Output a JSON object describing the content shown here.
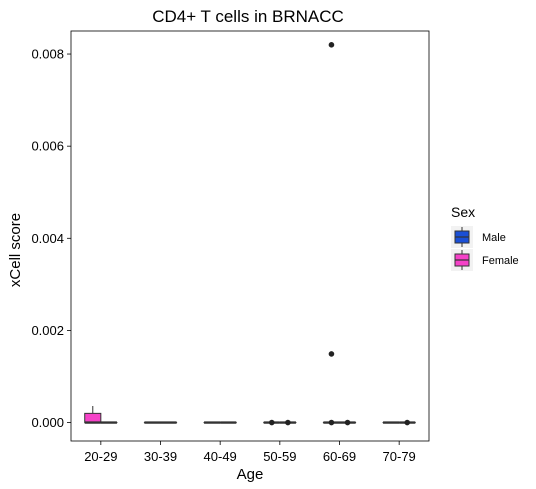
{
  "chart_data": {
    "type": "box",
    "title": "CD4+ T cells in BRNACC",
    "xlabel": "Age",
    "ylabel": "xCell score",
    "categories": [
      "20-29",
      "30-39",
      "40-49",
      "50-59",
      "60-69",
      "70-79"
    ],
    "ylim": [
      -0.0004,
      0.0085
    ],
    "yticks": [
      0.0,
      0.002,
      0.004,
      0.006,
      0.008
    ],
    "ytick_labels": [
      "0.000",
      "0.002",
      "0.004",
      "0.006",
      "0.008"
    ],
    "legend": {
      "title": "Sex",
      "position": "right"
    },
    "series": [
      {
        "name": "Female",
        "color": "#f542c8",
        "boxes": [
          {
            "category": "20-29",
            "min": 0.0,
            "q1": 0.0,
            "median": 0.0,
            "q3": 0.0002,
            "max": 0.00036,
            "outliers": []
          },
          {
            "category": "30-39",
            "min": 0.0,
            "q1": 0.0,
            "median": 0.0,
            "q3": 0.0,
            "max": 0.0,
            "outliers": []
          },
          {
            "category": "40-49",
            "min": 0.0,
            "q1": 0.0,
            "median": 0.0,
            "q3": 0.0,
            "max": 0.0,
            "outliers": []
          },
          {
            "category": "50-59",
            "min": 0.0,
            "q1": 0.0,
            "median": 0.0,
            "q3": 0.0,
            "max": 0.0,
            "outliers": [
              0.0
            ]
          },
          {
            "category": "60-69",
            "min": 0.0,
            "q1": 0.0,
            "median": 0.0,
            "q3": 0.0,
            "max": 0.0,
            "outliers": [
              0.0082,
              0.00149,
              0.0
            ]
          },
          {
            "category": "70-79",
            "min": 0.0,
            "q1": 0.0,
            "median": 0.0,
            "q3": 0.0,
            "max": 0.0,
            "outliers": []
          }
        ]
      },
      {
        "name": "Male",
        "color": "#1a4fd6",
        "boxes": [
          {
            "category": "20-29",
            "min": 0.0,
            "q1": 0.0,
            "median": 0.0,
            "q3": 0.0,
            "max": 0.0,
            "outliers": []
          },
          {
            "category": "30-39",
            "min": 0.0,
            "q1": 0.0,
            "median": 0.0,
            "q3": 0.0,
            "max": 0.0,
            "outliers": []
          },
          {
            "category": "40-49",
            "min": 0.0,
            "q1": 0.0,
            "median": 0.0,
            "q3": 0.0,
            "max": 0.0,
            "outliers": []
          },
          {
            "category": "50-59",
            "min": 0.0,
            "q1": 0.0,
            "median": 0.0,
            "q3": 0.0,
            "max": 0.0,
            "outliers": [
              0.0
            ]
          },
          {
            "category": "60-69",
            "min": 0.0,
            "q1": 0.0,
            "median": 0.0,
            "q3": 0.0,
            "max": 0.0,
            "outliers": [
              0.0
            ]
          },
          {
            "category": "70-79",
            "min": 0.0,
            "q1": 0.0,
            "median": 0.0,
            "q3": 0.0,
            "max": 0.0,
            "outliers": [
              0.0
            ]
          }
        ]
      }
    ],
    "legend_order": [
      "Male",
      "Female"
    ]
  }
}
